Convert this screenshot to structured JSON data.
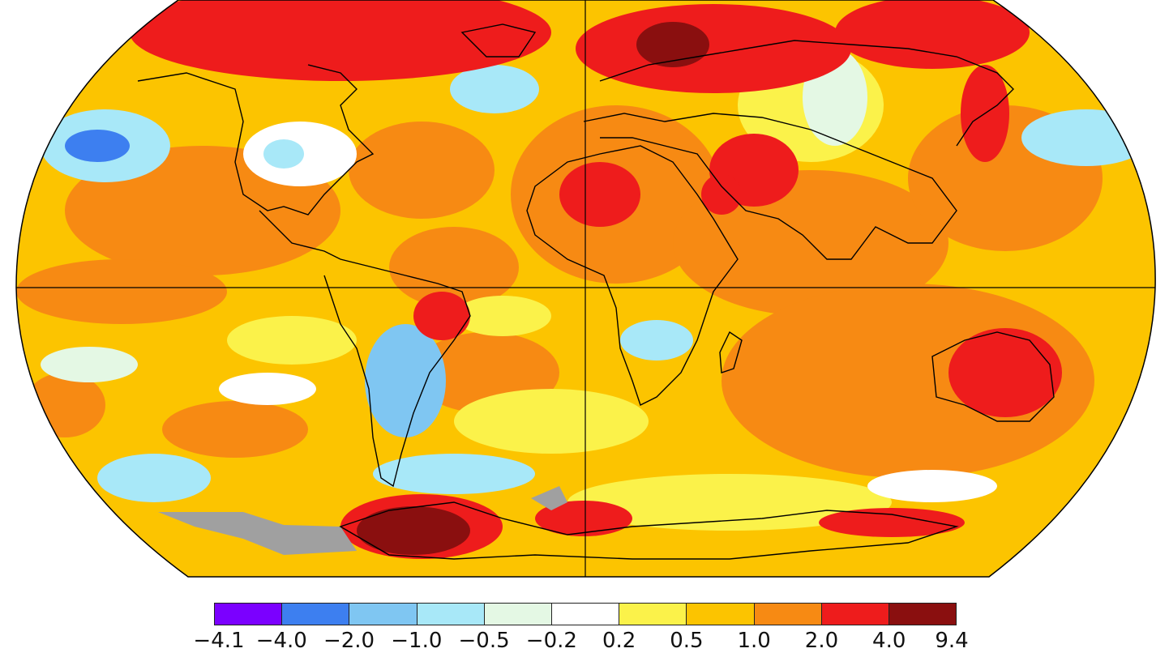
{
  "map": {
    "projection": "robinson",
    "features": [
      "coastlines",
      "equator-line",
      "prime-meridian-line",
      "temperature-anomaly-fill"
    ]
  },
  "legend": {
    "colors": [
      "#7b00ff",
      "#3d7ff0",
      "#7fc6f2",
      "#a8e8f8",
      "#e4f8e4",
      "#ffffff",
      "#fbf24a",
      "#fcc400",
      "#f78a13",
      "#ee1c1c",
      "#8a0f0f"
    ],
    "ticks": [
      "−4.1",
      "−4.0",
      "−2.0",
      "−1.0",
      "−0.5",
      "−0.2",
      "0.2",
      "0.5",
      "1.0",
      "2.0",
      "4.0",
      "9.4"
    ]
  },
  "colors": {
    "no_data": "#a0a0a0",
    "ocean_outline": "#000000"
  }
}
